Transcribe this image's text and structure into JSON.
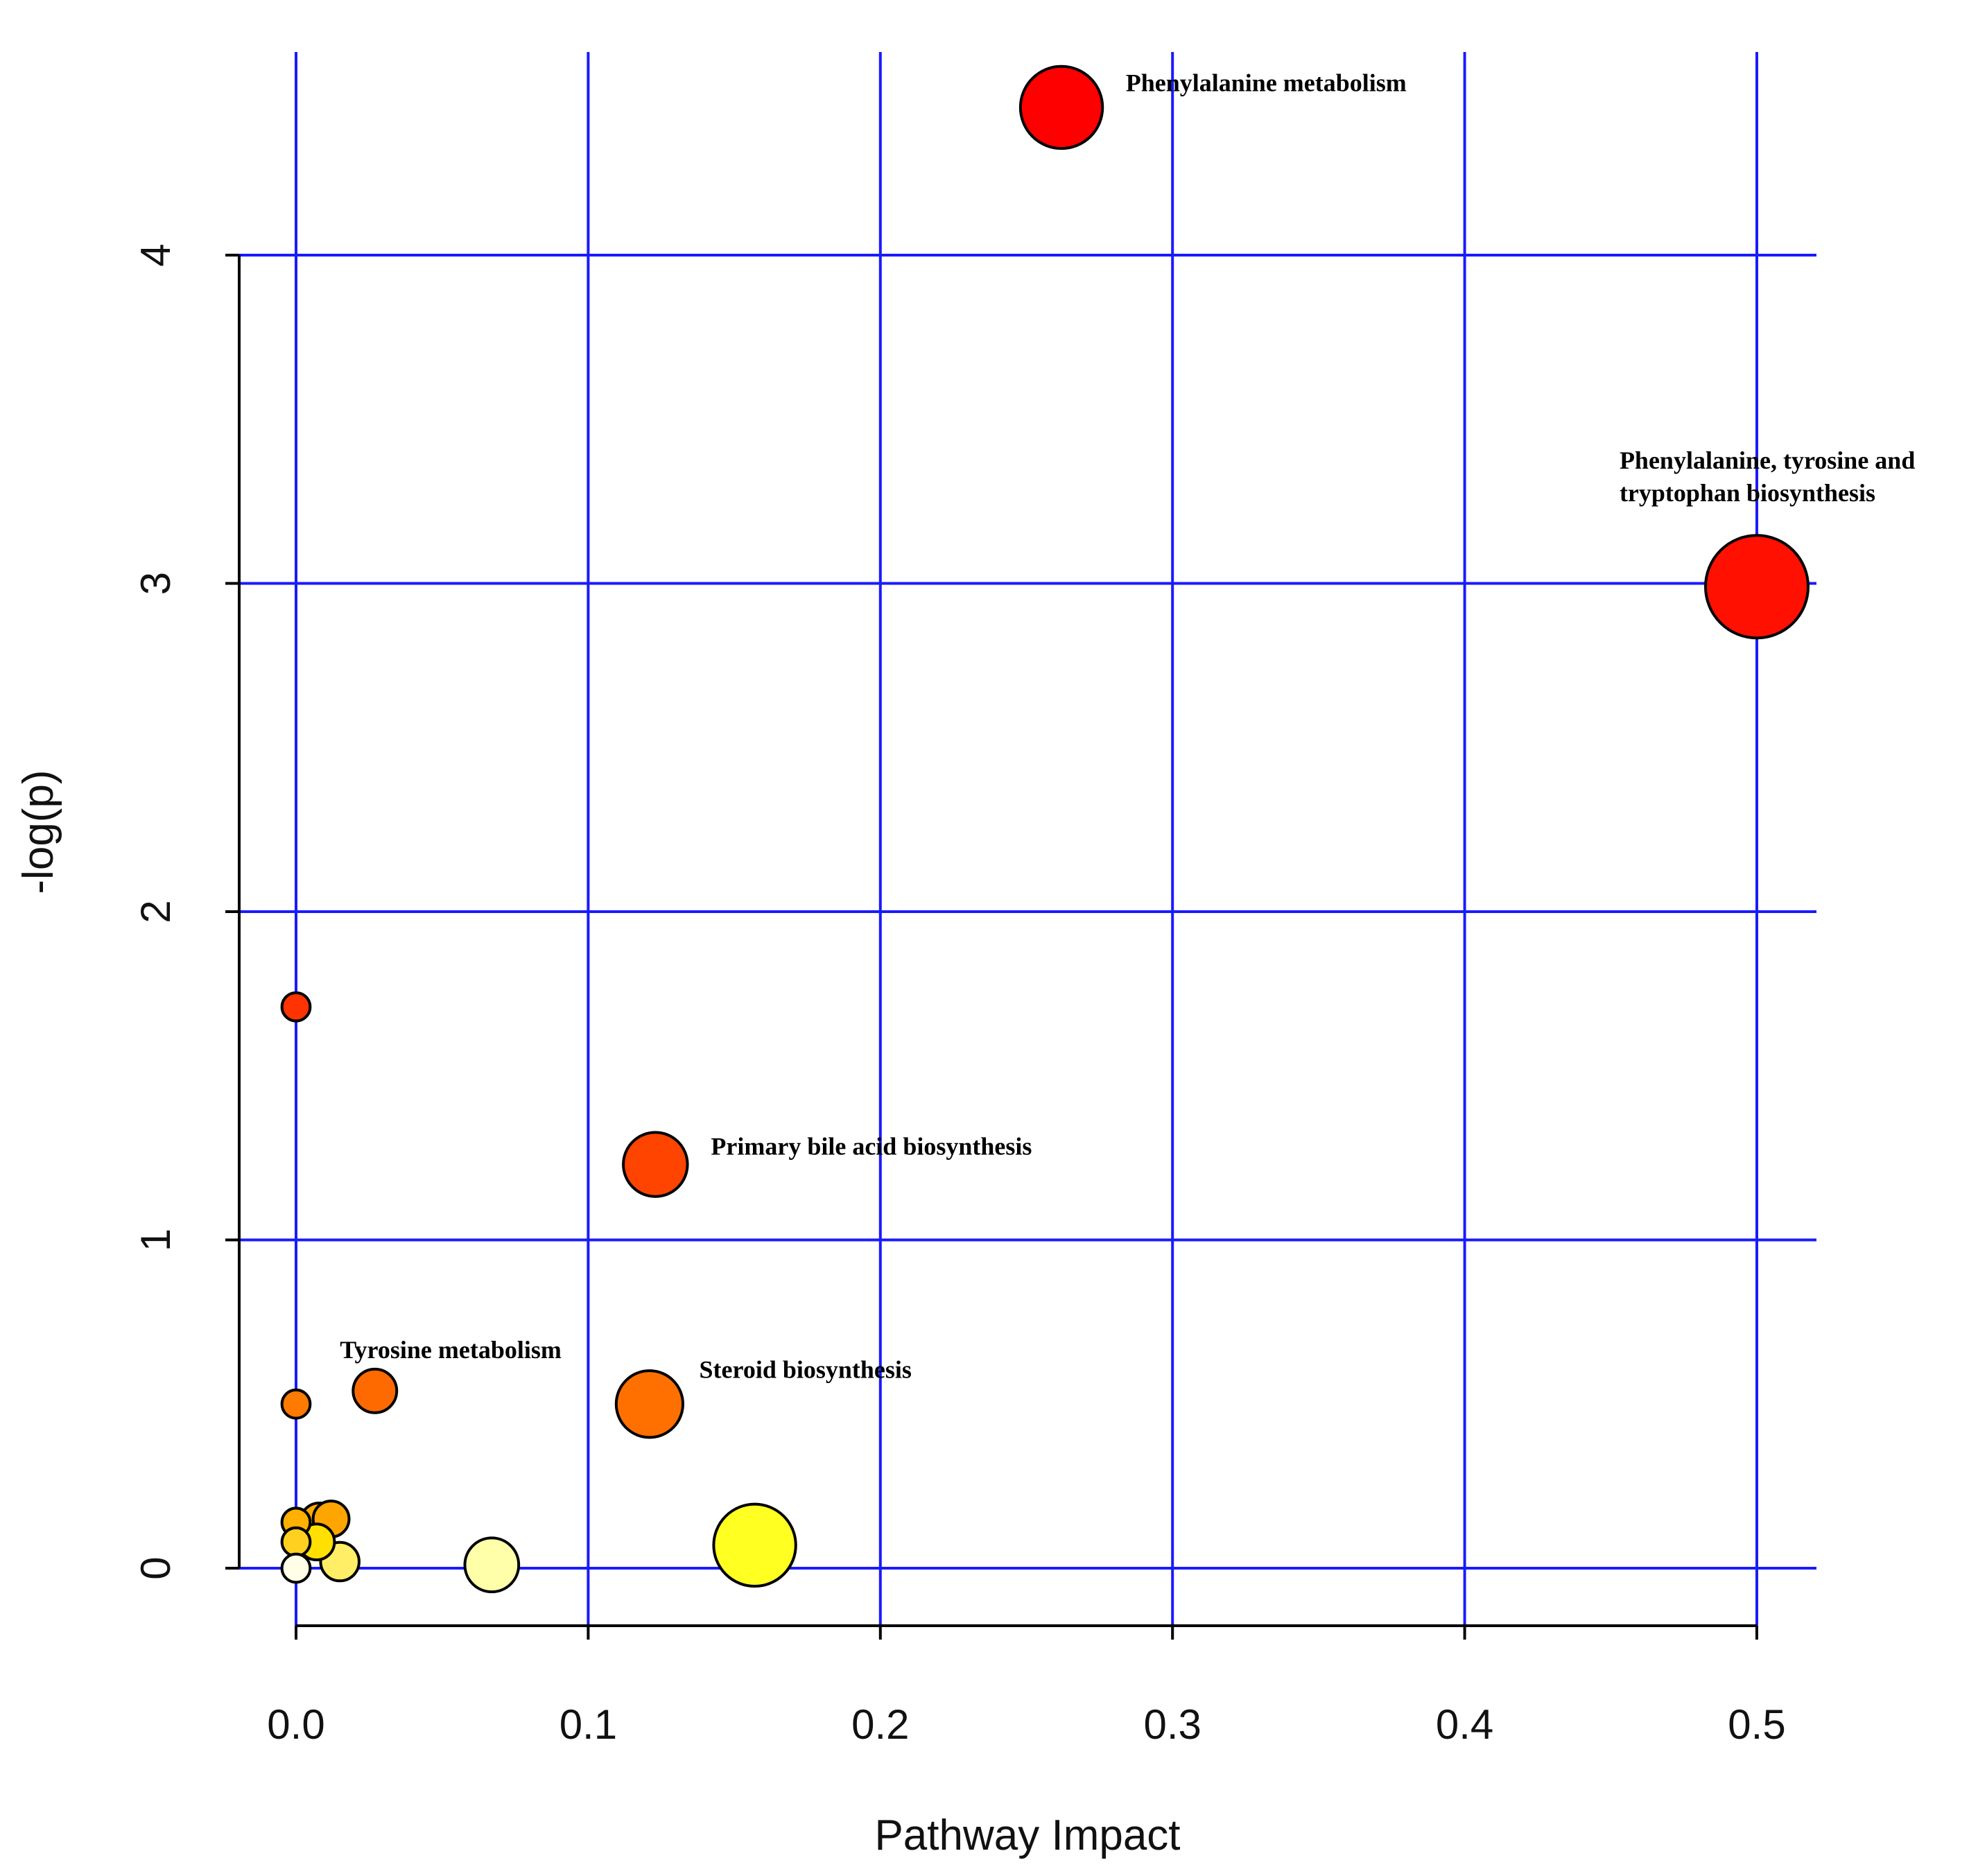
{
  "chart_data": {
    "type": "scatter",
    "title": "",
    "xlabel": "Pathway Impact",
    "ylabel": "-log(p)",
    "xlim": [
      0.0,
      0.5
    ],
    "ylim": [
      0,
      4
    ],
    "x_ticks": [
      "0.0",
      "0.1",
      "0.2",
      "0.3",
      "0.4",
      "0.5"
    ],
    "y_ticks": [
      "0",
      "1",
      "2",
      "3",
      "4"
    ],
    "grid": true,
    "grid_color": "#1a1aff",
    "points": [
      {
        "x": 0.0,
        "y": 1.71,
        "size": 0.55,
        "color": "#ff3300"
      },
      {
        "x": 0.0,
        "y": 0.5,
        "size": 0.55,
        "color": "#ff7a00"
      },
      {
        "x": 0.0,
        "y": 0.14,
        "size": 0.55,
        "color": "#ffb000"
      },
      {
        "x": 0.0,
        "y": 0.08,
        "size": 0.55,
        "color": "#ffd020"
      },
      {
        "x": 0.0,
        "y": 0.0,
        "size": 0.55,
        "color": "#ffffe8"
      },
      {
        "x": 0.008,
        "y": 0.14,
        "size": 0.75,
        "color": "#ffaa00"
      },
      {
        "x": 0.012,
        "y": 0.15,
        "size": 0.7,
        "color": "#ffa500"
      },
      {
        "x": 0.007,
        "y": 0.08,
        "size": 0.7,
        "color": "#ffe000"
      },
      {
        "x": 0.015,
        "y": 0.02,
        "size": 0.75,
        "color": "#ffee66"
      },
      {
        "x": 0.027,
        "y": 0.54,
        "size": 0.85,
        "color": "#ff6a00"
      },
      {
        "x": 0.067,
        "y": 0.01,
        "size": 1.05,
        "color": "#ffffaa"
      },
      {
        "x": 0.121,
        "y": 0.5,
        "size": 1.3,
        "color": "#ff7000"
      },
      {
        "x": 0.123,
        "y": 1.23,
        "size": 1.25,
        "color": "#ff4400"
      },
      {
        "x": 0.157,
        "y": 0.07,
        "size": 1.6,
        "color": "#ffff22"
      },
      {
        "x": 0.262,
        "y": 4.45,
        "size": 1.6,
        "color": "#ff0000"
      },
      {
        "x": 0.5,
        "y": 2.99,
        "size": 2.0,
        "color": "#ff1000"
      }
    ],
    "annotations": [
      {
        "text": "Phenylalanine metabolism",
        "x": 0.284,
        "y": 4.5
      },
      {
        "text": "Phenylalanine, tyrosine and",
        "x": 0.453,
        "y": 3.35
      },
      {
        "text": "tryptophan biosynthesis",
        "x": 0.453,
        "y": 3.25
      },
      {
        "text": "Primary bile acid biosynthesis",
        "x": 0.142,
        "y": 1.26
      },
      {
        "text": "Tyrosine metabolism",
        "x": 0.015,
        "y": 0.64
      },
      {
        "text": "Steroid biosynthesis",
        "x": 0.138,
        "y": 0.58
      }
    ]
  }
}
